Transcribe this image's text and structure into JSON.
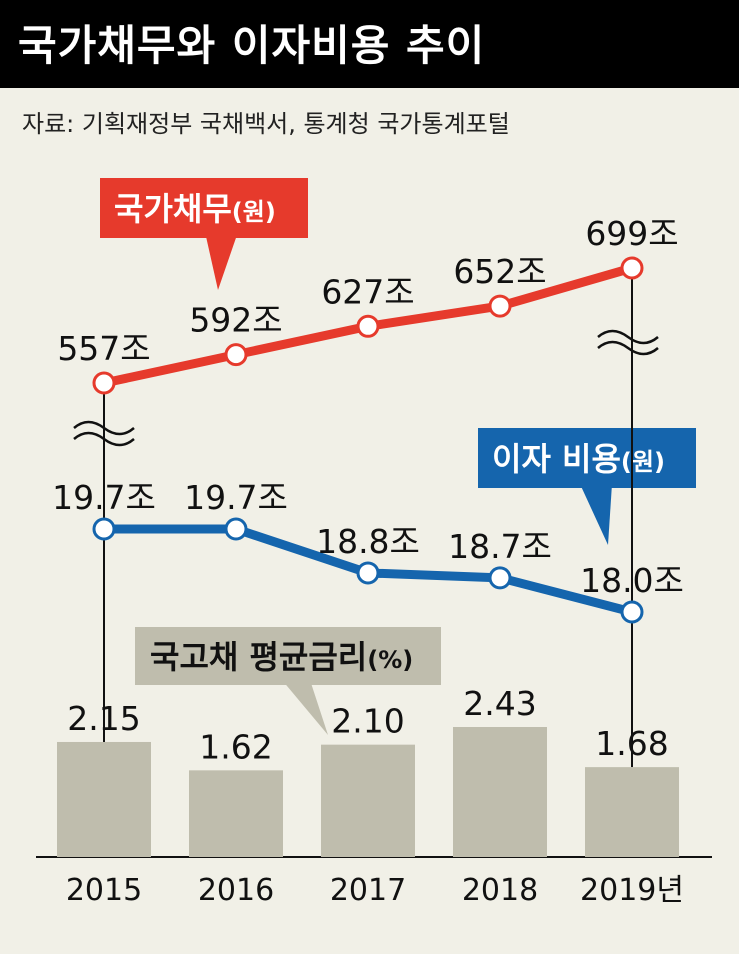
{
  "title": "국가채무와 이자비용 추이",
  "source": "자료: 기획재정부 국채백서, 통계청 국가통계포털",
  "chart_data": {
    "type": "line",
    "categories": [
      "2015",
      "2016",
      "2017",
      "2018",
      "2019년"
    ],
    "series": [
      {
        "name": "국가채무",
        "unit": "(원)",
        "values": [
          557,
          592,
          627,
          652,
          699
        ],
        "labels": [
          "557조",
          "592조",
          "627조",
          "652조",
          "699조"
        ],
        "color": "#e63a2c"
      },
      {
        "name": "이자 비용",
        "unit": "(원)",
        "values": [
          19.7,
          19.7,
          18.8,
          18.7,
          18.0
        ],
        "labels": [
          "19.7조",
          "19.7조",
          "18.8조",
          "18.7조",
          "18.0조"
        ],
        "color": "#1565ad"
      },
      {
        "name": "국고채 평균금리",
        "unit": "(%)",
        "type": "bar",
        "values": [
          2.15,
          1.62,
          2.1,
          2.43,
          1.68
        ],
        "labels": [
          "2.15",
          "1.62",
          "2.10",
          "2.43",
          "1.68"
        ],
        "color": "#bfbdad"
      }
    ]
  }
}
